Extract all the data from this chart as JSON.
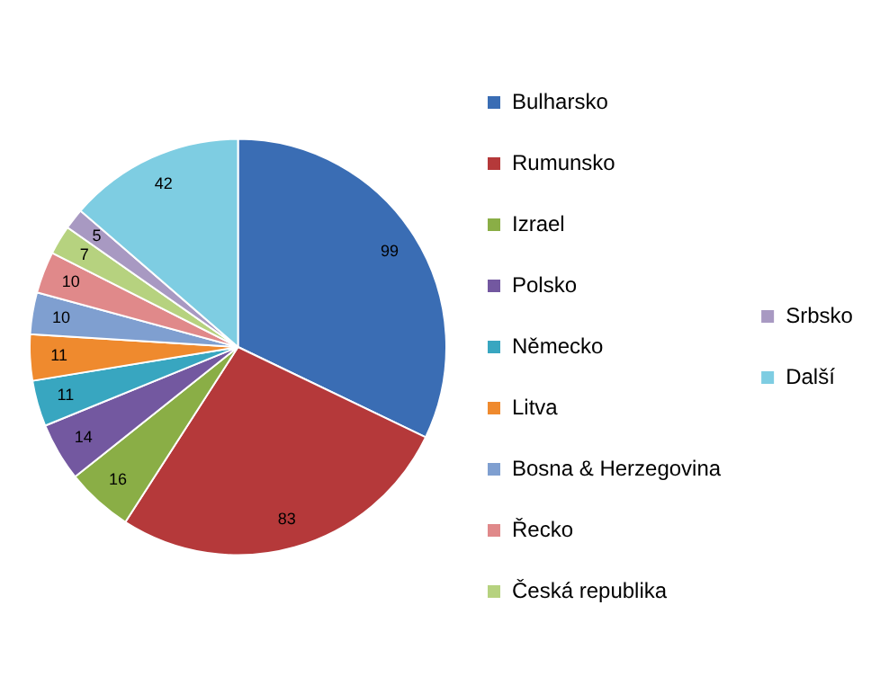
{
  "chart_data": {
    "type": "pie",
    "categories": [
      "Bulharsko",
      "Rumunsko",
      "Izrael",
      "Polsko",
      "Německo",
      "Litva",
      "Bosna & Herzegovina",
      "Řecko",
      "Česká republika",
      "Srbsko",
      "Další"
    ],
    "values": [
      99,
      83,
      16,
      14,
      11,
      11,
      10,
      10,
      7,
      5,
      42
    ],
    "colors": [
      "#3a6db4",
      "#b5393a",
      "#8aae46",
      "#7358a0",
      "#38a6c0",
      "#ef8a2e",
      "#7f9fd0",
      "#e0898a",
      "#b6d27f",
      "#a899c2",
      "#7ecde2"
    ],
    "data_labels": true,
    "legend": "right"
  }
}
